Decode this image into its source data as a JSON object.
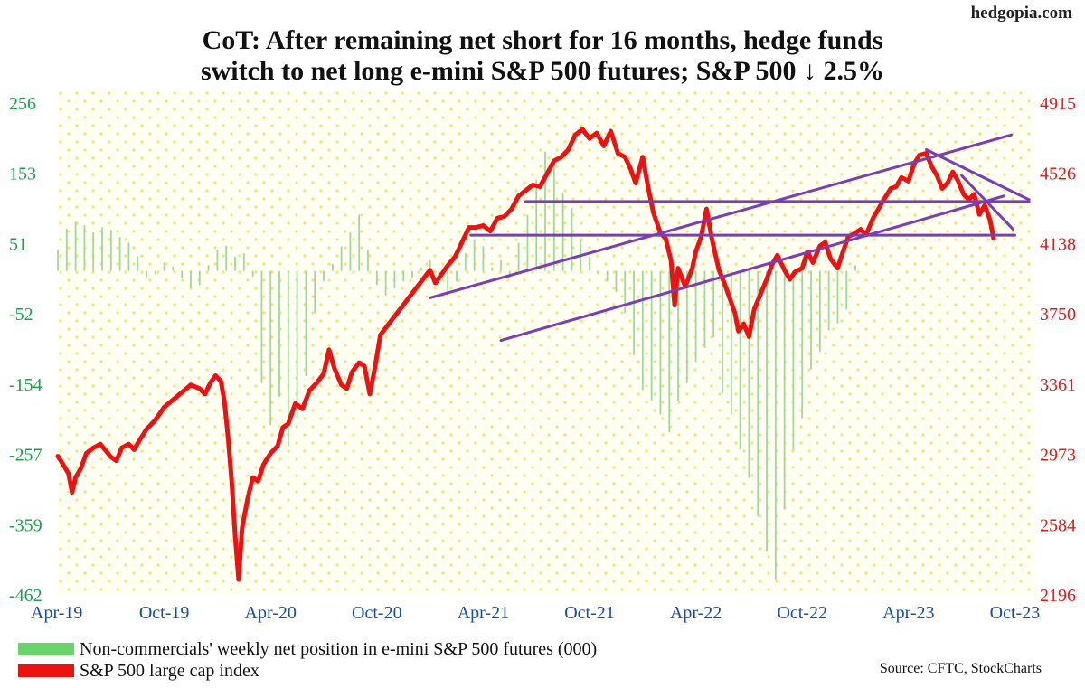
{
  "site": "hedgopia.com",
  "title_lines": [
    "CoT: After remaining net short for 16 months, hedge funds",
    "switch to net long e-mini S&P 500 futures; S&P 500 ↓ 2.5%"
  ],
  "source": "Source: CFTC, StockCharts",
  "colors": {
    "bars": "#9fd89f",
    "line": "#ee1111",
    "trend": "#7a3db8",
    "left_axis": "#1aa34a",
    "right_axis": "#e01b1b",
    "plot_bg": "#fffff2",
    "dots": "#f2e27a"
  },
  "chart_data": {
    "type": "bar+line",
    "grid": false,
    "legend_position": "bottom-left",
    "x_tick_labels": [
      "Apr-19",
      "Oct-19",
      "Apr-20",
      "Oct-20",
      "Apr-21",
      "Oct-21",
      "Apr-22",
      "Oct-22",
      "Apr-23",
      "Oct-23"
    ],
    "y_left": {
      "range": [
        -462,
        256
      ],
      "ticks": [
        "256",
        "153",
        "51",
        "-52",
        "-154",
        "-257",
        "-359",
        "-462"
      ]
    },
    "y_right": {
      "range": [
        2196,
        4915
      ],
      "ticks": [
        "4915",
        "4526",
        "4138",
        "3750",
        "3361",
        "2973",
        "2584",
        "2196"
      ]
    },
    "series": [
      {
        "name": "Non-commercials' weekly net position in e-mini S&P 500 futures (000)",
        "kind": "bar",
        "axis": "left",
        "points": [
          [
            0.0,
            30
          ],
          [
            0.5,
            60
          ],
          [
            1.0,
            70
          ],
          [
            1.5,
            65
          ],
          [
            2.0,
            55
          ],
          [
            2.5,
            62
          ],
          [
            3.0,
            58
          ],
          [
            3.5,
            48
          ],
          [
            4.0,
            40
          ],
          [
            4.5,
            20
          ],
          [
            5.0,
            -10
          ],
          [
            5.5,
            -5
          ],
          [
            6.0,
            12
          ],
          [
            6.5,
            6
          ],
          [
            7.0,
            -10
          ],
          [
            7.5,
            -25
          ],
          [
            8.0,
            -20
          ],
          [
            8.5,
            8
          ],
          [
            9.0,
            30
          ],
          [
            9.5,
            36
          ],
          [
            10.0,
            20
          ],
          [
            10.5,
            25
          ],
          [
            11.0,
            -8
          ],
          [
            11.5,
            -160
          ],
          [
            12.0,
            -220
          ],
          [
            12.5,
            -180
          ],
          [
            13.0,
            -250
          ],
          [
            13.5,
            -210
          ],
          [
            14.0,
            -150
          ],
          [
            14.5,
            -60
          ],
          [
            15.0,
            -15
          ],
          [
            15.5,
            10
          ],
          [
            16.0,
            35
          ],
          [
            16.5,
            55
          ],
          [
            17.0,
            80
          ],
          [
            17.5,
            30
          ],
          [
            18.0,
            -20
          ],
          [
            18.5,
            -35
          ],
          [
            19.0,
            -25
          ],
          [
            19.5,
            -15
          ],
          [
            20.0,
            -10
          ],
          [
            20.5,
            5
          ],
          [
            21.0,
            15
          ],
          [
            21.5,
            -8
          ],
          [
            22.0,
            -35
          ],
          [
            22.5,
            -15
          ],
          [
            23.0,
            25
          ],
          [
            23.5,
            45
          ],
          [
            24.0,
            35
          ],
          [
            24.5,
            5
          ],
          [
            25.0,
            15
          ],
          [
            25.5,
            -10
          ],
          [
            26.0,
            40
          ],
          [
            26.5,
            80
          ],
          [
            27.0,
            130
          ],
          [
            27.5,
            170
          ],
          [
            28.0,
            150
          ],
          [
            28.5,
            110
          ],
          [
            29.0,
            90
          ],
          [
            29.5,
            45
          ],
          [
            30.0,
            20
          ],
          [
            30.5,
            -5
          ],
          [
            31.0,
            -15
          ],
          [
            31.5,
            -30
          ],
          [
            32.0,
            -60
          ],
          [
            32.5,
            -120
          ],
          [
            33.0,
            -170
          ],
          [
            33.5,
            -185
          ],
          [
            34.0,
            -205
          ],
          [
            34.5,
            -230
          ],
          [
            35.0,
            -185
          ],
          [
            35.5,
            -160
          ],
          [
            36.0,
            -130
          ],
          [
            36.5,
            -110
          ],
          [
            37.0,
            -95
          ],
          [
            37.5,
            -175
          ],
          [
            38.0,
            -205
          ],
          [
            38.5,
            -255
          ],
          [
            39.0,
            -295
          ],
          [
            39.5,
            -350
          ],
          [
            40.0,
            -400
          ],
          [
            40.5,
            -440
          ],
          [
            41.0,
            -340
          ],
          [
            41.5,
            -255
          ],
          [
            42.0,
            -210
          ],
          [
            42.5,
            -140
          ],
          [
            43.0,
            -115
          ],
          [
            43.5,
            -85
          ],
          [
            44.0,
            -75
          ],
          [
            44.5,
            -55
          ],
          [
            45.0,
            8
          ]
        ]
      },
      {
        "name": "S&P 500 large cap index",
        "kind": "line",
        "axis": "right",
        "points": [
          [
            0.0,
            2945
          ],
          [
            0.3,
            2900
          ],
          [
            0.6,
            2850
          ],
          [
            0.8,
            2750
          ],
          [
            1.0,
            2830
          ],
          [
            1.3,
            2880
          ],
          [
            1.6,
            2960
          ],
          [
            2.0,
            2990
          ],
          [
            2.4,
            3010
          ],
          [
            2.7,
            2975
          ],
          [
            3.0,
            2940
          ],
          [
            3.3,
            2920
          ],
          [
            3.6,
            2990
          ],
          [
            4.0,
            3010
          ],
          [
            4.3,
            2980
          ],
          [
            4.6,
            3030
          ],
          [
            5.0,
            3090
          ],
          [
            5.5,
            3140
          ],
          [
            6.0,
            3210
          ],
          [
            6.5,
            3250
          ],
          [
            7.0,
            3290
          ],
          [
            7.5,
            3330
          ],
          [
            8.0,
            3310
          ],
          [
            8.3,
            3280
          ],
          [
            8.6,
            3340
          ],
          [
            8.9,
            3380
          ],
          [
            9.2,
            3350
          ],
          [
            9.4,
            3240
          ],
          [
            9.6,
            3050
          ],
          [
            9.8,
            2820
          ],
          [
            10.0,
            2520
          ],
          [
            10.2,
            2280
          ],
          [
            10.4,
            2560
          ],
          [
            10.7,
            2710
          ],
          [
            11.0,
            2830
          ],
          [
            11.3,
            2810
          ],
          [
            11.6,
            2900
          ],
          [
            12.0,
            2960
          ],
          [
            12.4,
            3000
          ],
          [
            12.7,
            3100
          ],
          [
            13.0,
            3120
          ],
          [
            13.4,
            3230
          ],
          [
            13.8,
            3200
          ],
          [
            14.2,
            3300
          ],
          [
            14.6,
            3340
          ],
          [
            15.0,
            3390
          ],
          [
            15.3,
            3520
          ],
          [
            15.6,
            3420
          ],
          [
            16.0,
            3330
          ],
          [
            16.3,
            3310
          ],
          [
            16.6,
            3400
          ],
          [
            17.0,
            3450
          ],
          [
            17.3,
            3430
          ],
          [
            17.6,
            3280
          ],
          [
            17.9,
            3430
          ],
          [
            18.2,
            3600
          ],
          [
            18.6,
            3650
          ],
          [
            19.0,
            3700
          ],
          [
            19.4,
            3750
          ],
          [
            19.8,
            3800
          ],
          [
            20.2,
            3850
          ],
          [
            20.6,
            3900
          ],
          [
            21.0,
            3950
          ],
          [
            21.3,
            3880
          ],
          [
            21.6,
            3920
          ],
          [
            22.0,
            3975
          ],
          [
            22.4,
            4020
          ],
          [
            22.8,
            4100
          ],
          [
            23.2,
            4180
          ],
          [
            23.6,
            4180
          ],
          [
            24.0,
            4190
          ],
          [
            24.4,
            4160
          ],
          [
            24.8,
            4230
          ],
          [
            25.2,
            4240
          ],
          [
            25.6,
            4280
          ],
          [
            26.0,
            4350
          ],
          [
            26.4,
            4380
          ],
          [
            26.8,
            4410
          ],
          [
            27.2,
            4400
          ],
          [
            27.6,
            4470
          ],
          [
            28.0,
            4540
          ],
          [
            28.4,
            4560
          ],
          [
            28.8,
            4600
          ],
          [
            29.2,
            4680
          ],
          [
            29.6,
            4710
          ],
          [
            30.0,
            4660
          ],
          [
            30.4,
            4690
          ],
          [
            30.8,
            4620
          ],
          [
            31.2,
            4700
          ],
          [
            31.6,
            4580
          ],
          [
            32.0,
            4560
          ],
          [
            32.3,
            4500
          ],
          [
            32.6,
            4420
          ],
          [
            33.0,
            4560
          ],
          [
            33.3,
            4400
          ],
          [
            33.6,
            4260
          ],
          [
            34.0,
            4150
          ],
          [
            34.3,
            4120
          ],
          [
            34.6,
            4000
          ],
          [
            34.8,
            3760
          ],
          [
            35.0,
            3960
          ],
          [
            35.4,
            3860
          ],
          [
            35.8,
            3960
          ],
          [
            36.0,
            4050
          ],
          [
            36.3,
            4130
          ],
          [
            36.6,
            4280
          ],
          [
            36.9,
            4120
          ],
          [
            37.3,
            3950
          ],
          [
            37.6,
            3880
          ],
          [
            37.9,
            3800
          ],
          [
            38.2,
            3720
          ],
          [
            38.4,
            3620
          ],
          [
            38.7,
            3660
          ],
          [
            39.0,
            3590
          ],
          [
            39.3,
            3740
          ],
          [
            39.6,
            3810
          ],
          [
            40.0,
            3900
          ],
          [
            40.3,
            3980
          ],
          [
            40.6,
            4030
          ],
          [
            41.0,
            3950
          ],
          [
            41.3,
            3900
          ],
          [
            41.6,
            3940
          ],
          [
            42.0,
            3960
          ],
          [
            42.3,
            4050
          ],
          [
            42.6,
            3990
          ],
          [
            43.0,
            4080
          ],
          [
            43.3,
            4100
          ],
          [
            43.6,
            4010
          ],
          [
            44.0,
            3960
          ],
          [
            44.3,
            4050
          ],
          [
            44.6,
            4130
          ],
          [
            45.0,
            4150
          ],
          [
            45.3,
            4170
          ],
          [
            45.6,
            4140
          ],
          [
            46.0,
            4230
          ],
          [
            46.3,
            4280
          ],
          [
            46.6,
            4330
          ],
          [
            47.0,
            4390
          ],
          [
            47.3,
            4400
          ],
          [
            47.6,
            4450
          ],
          [
            48.0,
            4430
          ],
          [
            48.3,
            4520
          ],
          [
            48.6,
            4570
          ],
          [
            49.0,
            4580
          ],
          [
            49.3,
            4510
          ],
          [
            49.6,
            4460
          ],
          [
            49.9,
            4390
          ],
          [
            50.2,
            4420
          ],
          [
            50.5,
            4480
          ],
          [
            50.8,
            4430
          ],
          [
            51.1,
            4360
          ],
          [
            51.4,
            4330
          ],
          [
            51.7,
            4360
          ],
          [
            52.0,
            4250
          ],
          [
            52.3,
            4300
          ],
          [
            52.6,
            4220
          ],
          [
            52.8,
            4120
          ]
        ]
      }
    ],
    "trend_lines": [
      {
        "from": [
          21.0,
          3800
        ],
        "to": [
          53.8,
          4680
        ]
      },
      {
        "from": [
          25.0,
          3570
        ],
        "to": [
          53.4,
          4350
        ]
      },
      {
        "from": [
          26.4,
          4320
        ],
        "to": [
          54.8,
          4320
        ]
      },
      {
        "from": [
          23.3,
          4138
        ],
        "to": [
          54.0,
          4138
        ]
      },
      {
        "from": [
          49.0,
          4600
        ],
        "to": [
          54.8,
          4330
        ]
      },
      {
        "from": [
          51.0,
          4460
        ],
        "to": [
          53.9,
          4170
        ]
      }
    ]
  }
}
